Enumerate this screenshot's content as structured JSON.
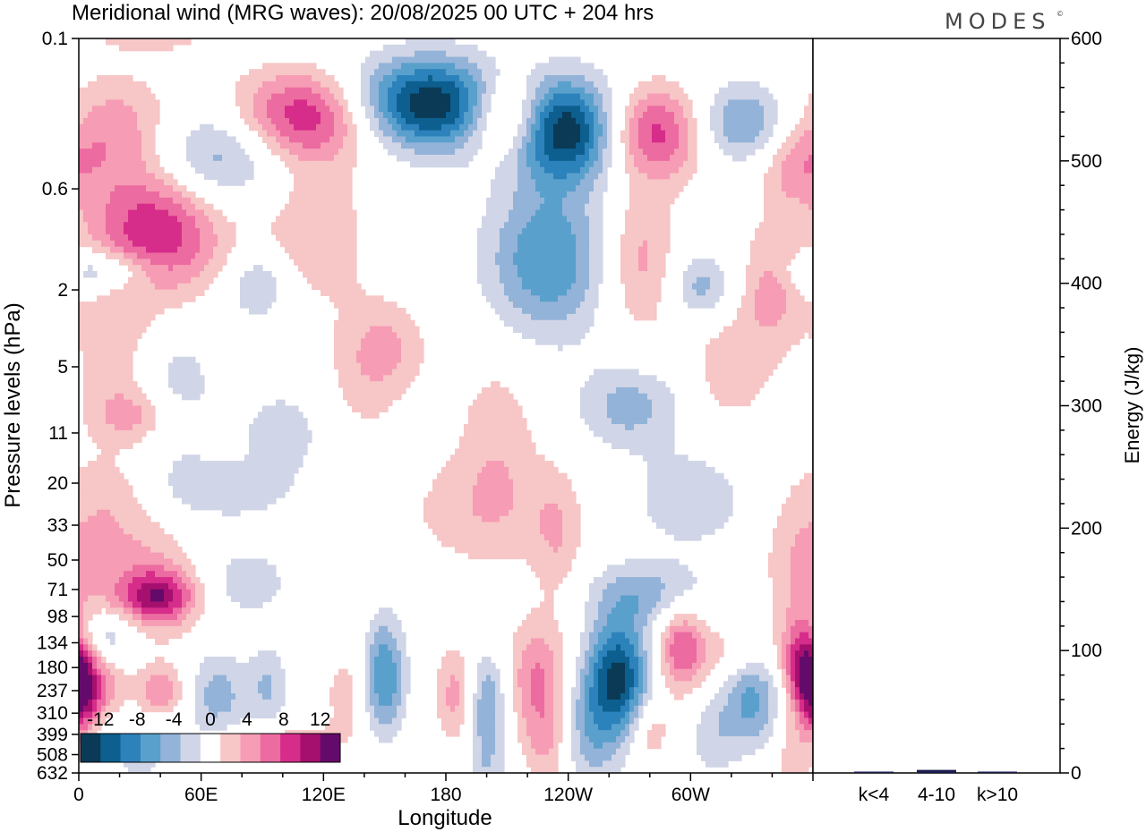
{
  "chart_data": {
    "type": "heatmap",
    "title": "Meridional wind (MRG waves):  20/08/2025  00 UTC  + 204 hrs",
    "logo": "MODES",
    "logo_mark": "©",
    "xlabel": "Longitude",
    "ylabel": "Pressure levels (hPa)",
    "x_ticks": [
      "0",
      "60E",
      "120E",
      "180",
      "120W",
      "60W"
    ],
    "x_tick_values": [
      0,
      60,
      120,
      180,
      240,
      300
    ],
    "xlim": [
      0,
      360
    ],
    "y_ticks": [
      "0.1",
      "0.6",
      "2",
      "5",
      "11",
      "20",
      "33",
      "50",
      "71",
      "98",
      "134",
      "180",
      "237",
      "310",
      "399",
      "508",
      "632"
    ],
    "colorbar": {
      "labels": [
        "-12",
        "-8",
        "-4",
        "0",
        "4",
        "8",
        "12"
      ],
      "label_values": [
        -12,
        -8,
        -4,
        0,
        4,
        8,
        12
      ],
      "levels": [
        -14,
        -12,
        -10,
        -8,
        -6,
        -4,
        -2,
        2,
        4,
        6,
        8,
        10,
        12,
        14
      ],
      "colors": [
        "#0a3a56",
        "#0d5f8f",
        "#2c82bb",
        "#5aa0cc",
        "#93b3d8",
        "#d0d5e7",
        "#ffffff",
        "#f7c6c6",
        "#f69cb4",
        "#ec6ba0",
        "#d62c8a",
        "#a5106f",
        "#640a6a"
      ]
    },
    "blobs": [
      {
        "lon": 15,
        "p": 0.3,
        "w": 35,
        "h": 0.65,
        "v": 6
      },
      {
        "lon": 38,
        "p": 1.0,
        "w": 33,
        "h": 0.8,
        "v": 10
      },
      {
        "lon": 35,
        "p": 0.08,
        "w": 25,
        "h": 0.3,
        "v": 7
      },
      {
        "lon": 65,
        "p": 0.4,
        "w": 35,
        "h": 0.6,
        "v": -7
      },
      {
        "lon": 12,
        "p": 1.6,
        "w": 25,
        "h": 0.25,
        "v": -6
      },
      {
        "lon": 115,
        "p": 0.25,
        "w": 38,
        "h": 0.55,
        "v": 12
      },
      {
        "lon": 115,
        "p": 1.0,
        "w": 25,
        "h": 0.8,
        "v": 4
      },
      {
        "lon": 88,
        "p": 1.9,
        "w": 15,
        "h": 0.4,
        "v": -5
      },
      {
        "lon": 170,
        "p": 0.22,
        "w": 45,
        "h": 0.55,
        "v": -15
      },
      {
        "lon": 210,
        "p": 0.25,
        "w": 20,
        "h": 0.5,
        "v": 12
      },
      {
        "lon": 240,
        "p": 0.3,
        "w": 30,
        "h": 0.6,
        "v": -15
      },
      {
        "lon": 230,
        "p": 1.4,
        "w": 30,
        "h": 0.9,
        "v": -8
      },
      {
        "lon": 283,
        "p": 0.3,
        "w": 32,
        "h": 0.55,
        "v": 12
      },
      {
        "lon": 275,
        "p": 1.4,
        "w": 18,
        "h": 0.9,
        "v": 5
      },
      {
        "lon": 322,
        "p": 0.28,
        "w": 32,
        "h": 0.5,
        "v": -9
      },
      {
        "lon": 350,
        "p": 0.45,
        "w": 18,
        "h": 0.5,
        "v": 4
      },
      {
        "lon": 340,
        "p": 1.9,
        "w": 15,
        "h": 0.7,
        "v": 5
      },
      {
        "lon": 305,
        "p": 1.9,
        "w": 15,
        "h": 0.4,
        "v": -5
      },
      {
        "lon": 45,
        "p": 7,
        "w": 22,
        "h": 0.9,
        "v": -4
      },
      {
        "lon": 30,
        "p": 9,
        "w": 22,
        "h": 0.35,
        "v": 5
      },
      {
        "lon": 20,
        "p": 4.5,
        "w": 22,
        "h": 0.8,
        "v": 3.5
      },
      {
        "lon": 140,
        "p": 5,
        "w": 20,
        "h": 0.9,
        "v": 3
      },
      {
        "lon": 155,
        "p": 4,
        "w": 18,
        "h": 0.5,
        "v": 3
      },
      {
        "lon": 205,
        "p": 10,
        "w": 20,
        "h": 0.9,
        "v": 3
      },
      {
        "lon": 270,
        "p": 8,
        "w": 25,
        "h": 0.5,
        "v": -5
      },
      {
        "lon": 320,
        "p": 5,
        "w": 20,
        "h": 0.7,
        "v": 3.5
      },
      {
        "lon": 100,
        "p": 11,
        "w": 20,
        "h": 0.5,
        "v": -3.5
      },
      {
        "lon": 300,
        "p": 24,
        "w": 30,
        "h": 0.6,
        "v": -3.5
      },
      {
        "lon": 70,
        "p": 22,
        "w": 35,
        "h": 0.35,
        "v": -3.5
      },
      {
        "lon": 15,
        "p": 25,
        "w": 25,
        "h": 0.6,
        "v": 3.5
      },
      {
        "lon": 200,
        "p": 28,
        "w": 40,
        "h": 0.7,
        "v": 3.5
      },
      {
        "lon": 235,
        "p": 40,
        "w": 12,
        "h": 0.8,
        "v": 3
      },
      {
        "lon": 80,
        "p": 65,
        "w": 25,
        "h": 0.45,
        "v": -3.5
      },
      {
        "lon": 30,
        "p": 70,
        "w": 32,
        "h": 0.7,
        "v": 5
      },
      {
        "lon": 40,
        "p": 77,
        "w": 18,
        "h": 0.3,
        "v": 8
      },
      {
        "lon": 280,
        "p": 75,
        "w": 30,
        "h": 0.4,
        "v": -5
      },
      {
        "lon": 350,
        "p": 50,
        "w": 15,
        "h": 0.8,
        "v": 3
      },
      {
        "lon": 15,
        "p": 120,
        "w": 15,
        "h": 0.3,
        "v": -5
      },
      {
        "lon": 2,
        "p": 240,
        "w": 8,
        "h": 0.5,
        "v": 9
      },
      {
        "lon": 12,
        "p": 230,
        "w": 10,
        "h": 0.35,
        "v": 5
      },
      {
        "lon": 40,
        "p": 240,
        "w": 12,
        "h": 0.3,
        "v": 6
      },
      {
        "lon": 68,
        "p": 250,
        "w": 15,
        "h": 0.55,
        "v": -5
      },
      {
        "lon": 93,
        "p": 230,
        "w": 10,
        "h": 0.5,
        "v": -4
      },
      {
        "lon": 100,
        "p": 420,
        "w": 30,
        "h": 0.2,
        "v": 3
      },
      {
        "lon": 150,
        "p": 200,
        "w": 10,
        "h": 0.7,
        "v": -8
      },
      {
        "lon": 130,
        "p": 250,
        "w": 10,
        "h": 0.55,
        "v": 3
      },
      {
        "lon": 185,
        "p": 250,
        "w": 10,
        "h": 0.6,
        "v": 5
      },
      {
        "lon": 200,
        "p": 270,
        "w": 10,
        "h": 0.6,
        "v": -6
      },
      {
        "lon": 225,
        "p": 200,
        "w": 15,
        "h": 0.7,
        "v": 6
      },
      {
        "lon": 265,
        "p": 200,
        "w": 15,
        "h": 0.7,
        "v": -12
      },
      {
        "lon": 250,
        "p": 380,
        "w": 15,
        "h": 0.8,
        "v": -5
      },
      {
        "lon": 295,
        "p": 140,
        "w": 12,
        "h": 0.55,
        "v": 7
      },
      {
        "lon": 330,
        "p": 260,
        "w": 15,
        "h": 0.6,
        "v": -7
      },
      {
        "lon": 320,
        "p": 150,
        "w": 25,
        "h": 0.4,
        "v": 3
      },
      {
        "lon": 355,
        "p": 180,
        "w": 10,
        "h": 0.6,
        "v": 10
      },
      {
        "lon": 310,
        "p": 420,
        "w": 12,
        "h": 0.5,
        "v": -3
      },
      {
        "lon": 230,
        "p": 450,
        "w": 12,
        "h": 0.6,
        "v": 4
      },
      {
        "lon": 280,
        "p": 380,
        "w": 10,
        "h": 0.4,
        "v": 4
      },
      {
        "lon": 30,
        "p": 500,
        "w": 15,
        "h": 0.4,
        "v": -3
      },
      {
        "lon": 200,
        "p": 600,
        "w": 10,
        "h": 0.5,
        "v": -3
      },
      {
        "lon": 350,
        "p": 550,
        "w": 12,
        "h": 0.5,
        "v": 3
      }
    ],
    "energy_axis": {
      "label": "Energy (J/kg)",
      "ylim": [
        0,
        600
      ],
      "ticks": [
        0,
        100,
        200,
        300,
        400,
        500,
        600
      ],
      "categories": [
        "k<4",
        "4-10",
        "k>10"
      ],
      "values": [
        0.5,
        2.5,
        0.3
      ],
      "bar_color": "#1a1a4e"
    }
  }
}
